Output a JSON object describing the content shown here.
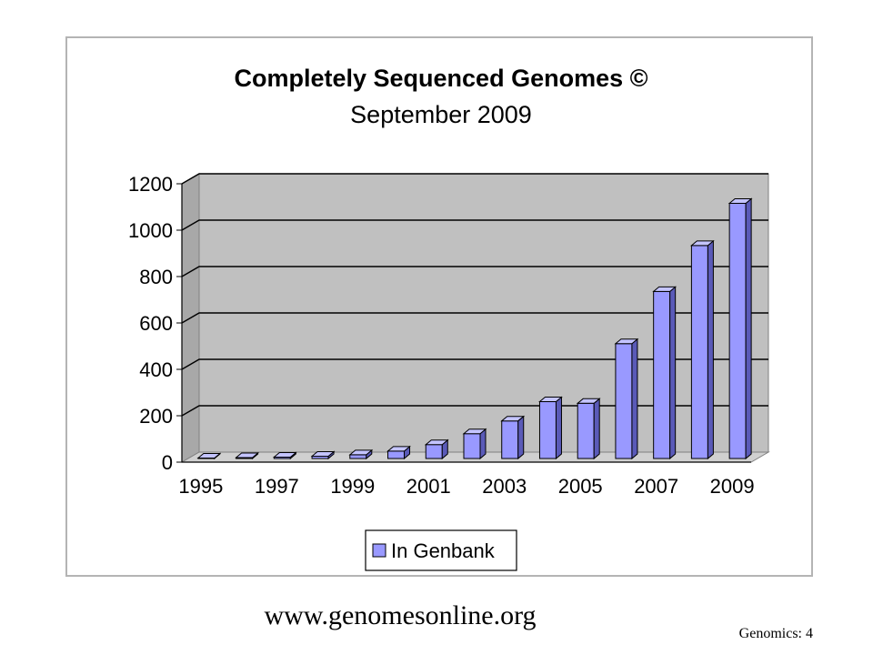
{
  "chart_data": {
    "type": "bar",
    "title": "Completely Sequenced Genomes ©",
    "subtitle": "September 2009",
    "x": [
      1995,
      1996,
      1997,
      1998,
      1999,
      2000,
      2001,
      2002,
      2003,
      2004,
      2005,
      2006,
      2007,
      2008,
      2009
    ],
    "x_tick_labels": [
      "1995",
      "1997",
      "1999",
      "2001",
      "2003",
      "2005",
      "2007",
      "2009"
    ],
    "y_tick_labels": [
      "0",
      "200",
      "400",
      "600",
      "800",
      "1000",
      "1200"
    ],
    "ylim": [
      0,
      1200
    ],
    "grid": true,
    "legend_position": "bottom",
    "series": [
      {
        "name": "In Genbank",
        "values": [
          2,
          4,
          6,
          10,
          16,
          32,
          60,
          107,
          162,
          245,
          238,
          495,
          720,
          918,
          1100
        ]
      }
    ],
    "colors": {
      "bar_front": "#9999ff",
      "bar_side": "#5a5ab8",
      "bar_top": "#c4c4ff",
      "plot_bg": "#c0c0c0"
    }
  },
  "footer": {
    "url": "www.genomesonline.org",
    "slide_label": "Genomics: 4"
  }
}
